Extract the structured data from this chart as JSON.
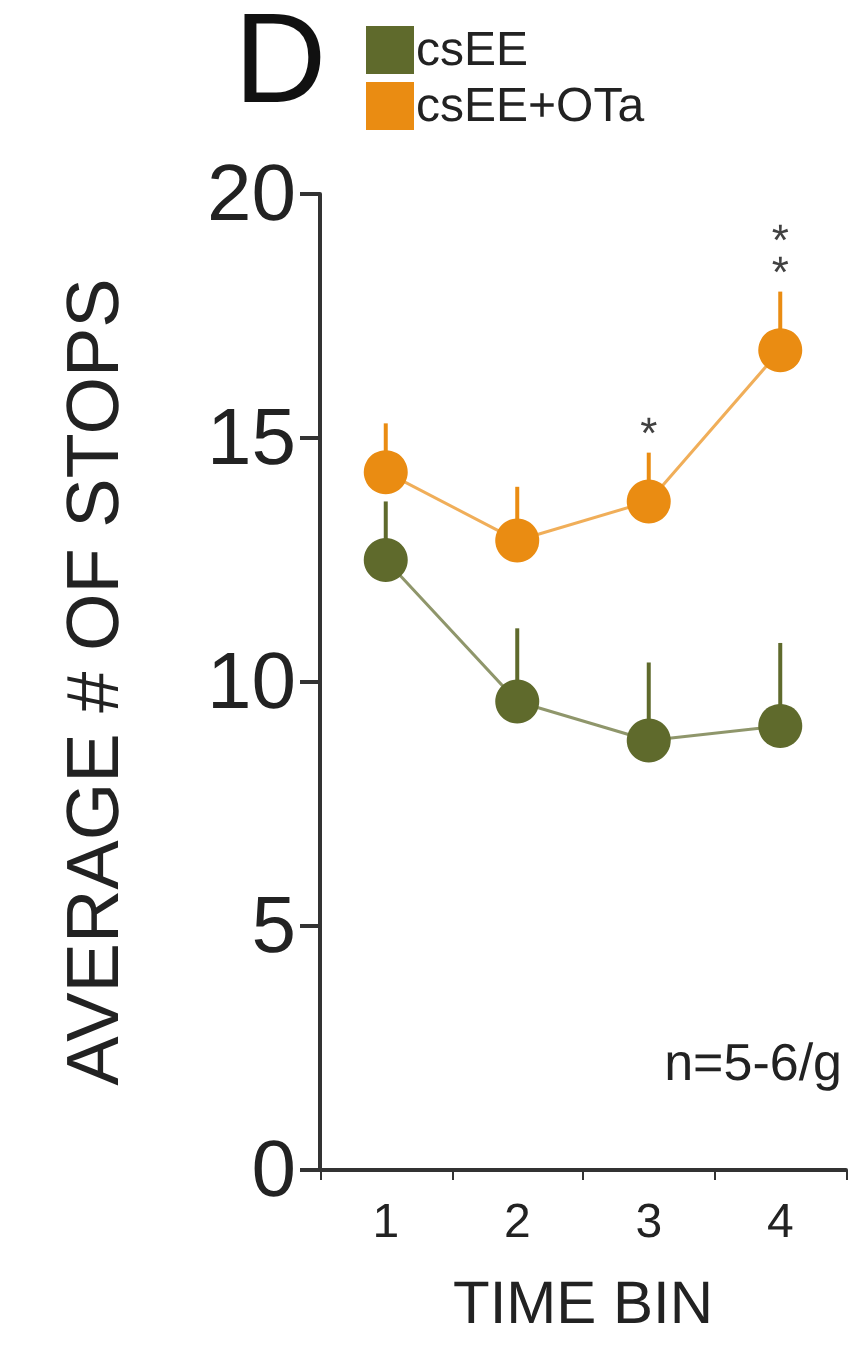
{
  "chart_data": {
    "type": "line",
    "title": "D",
    "xlabel": "TIME BIN",
    "ylabel": "AVERAGE # OF STOPS",
    "categories": [
      "1",
      "2",
      "3",
      "4"
    ],
    "series": [
      {
        "name": "csEE",
        "color": "#5f6a2c",
        "values": [
          12.5,
          9.6,
          8.8,
          9.1
        ],
        "errors": [
          [
            12.5,
            13.7
          ],
          [
            9.6,
            11.1
          ],
          [
            8.8,
            10.4
          ],
          [
            9.1,
            10.8
          ]
        ]
      },
      {
        "name": "csEE+OTa",
        "color": "#ea8c12",
        "values": [
          14.3,
          12.9,
          13.7,
          16.8
        ],
        "errors": [
          [
            14.3,
            15.3
          ],
          [
            12.9,
            14.0
          ],
          [
            13.7,
            14.7
          ],
          [
            16.8,
            18.0
          ]
        ]
      }
    ],
    "annotations": [
      {
        "text": "*",
        "x": "3",
        "y": 14.7
      },
      {
        "text": "**",
        "x": "4",
        "y": 18.0
      },
      "n=5-6/g"
    ],
    "ylim": [
      0,
      20
    ],
    "yticks": [
      0,
      5,
      10,
      15,
      20
    ],
    "grid": false,
    "legend": "top",
    "marker": "circle",
    "line_style": "solid"
  }
}
